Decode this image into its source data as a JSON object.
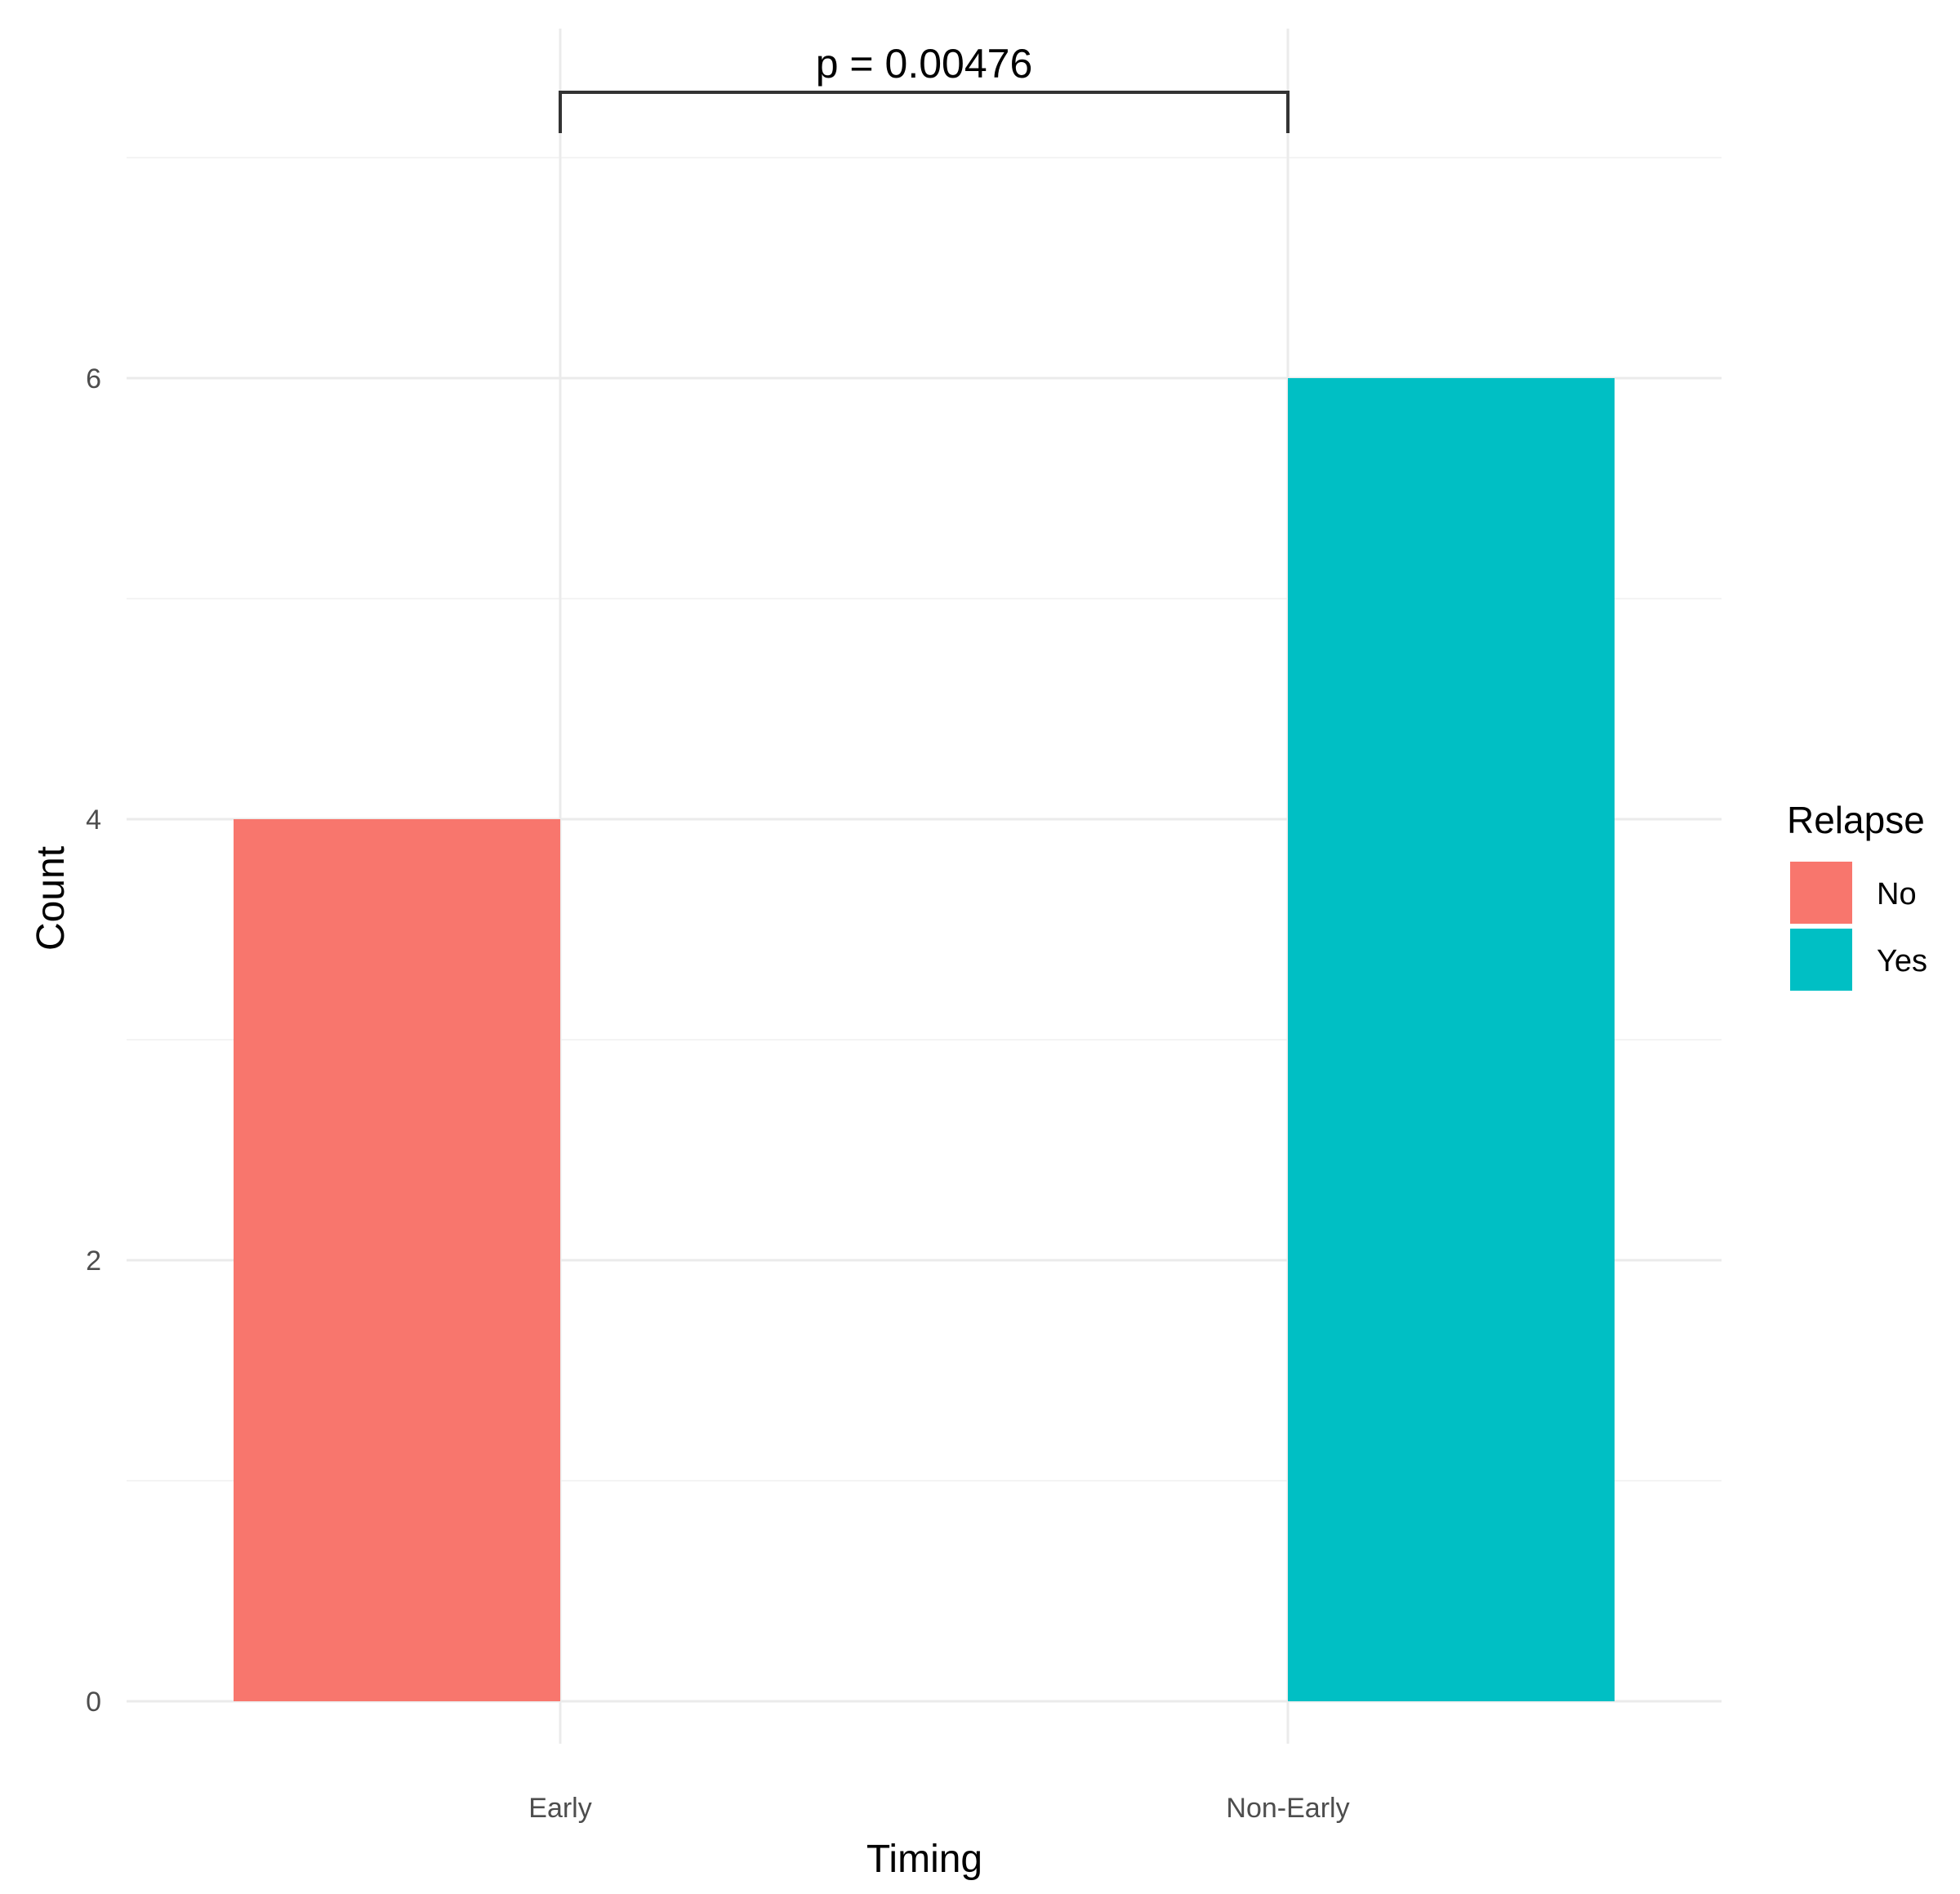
{
  "chart_data": {
    "type": "bar",
    "categories": [
      "Early",
      "Non-Early"
    ],
    "series": [
      {
        "name": "No",
        "color": "#F8766D",
        "values": [
          4,
          0
        ]
      },
      {
        "name": "Yes",
        "color": "#00BFC4",
        "values": [
          0,
          6
        ]
      }
    ],
    "xlabel": "Timing",
    "ylabel": "Count",
    "ylim": [
      0,
      7
    ],
    "yticks": [
      0,
      2,
      4,
      6
    ],
    "grid": true,
    "legend": {
      "title": "Relapse",
      "position": "right"
    },
    "annotation": {
      "text": "p = 0.00476",
      "from": "Early",
      "to": "Non-Early",
      "type": "significance-bracket"
    }
  }
}
